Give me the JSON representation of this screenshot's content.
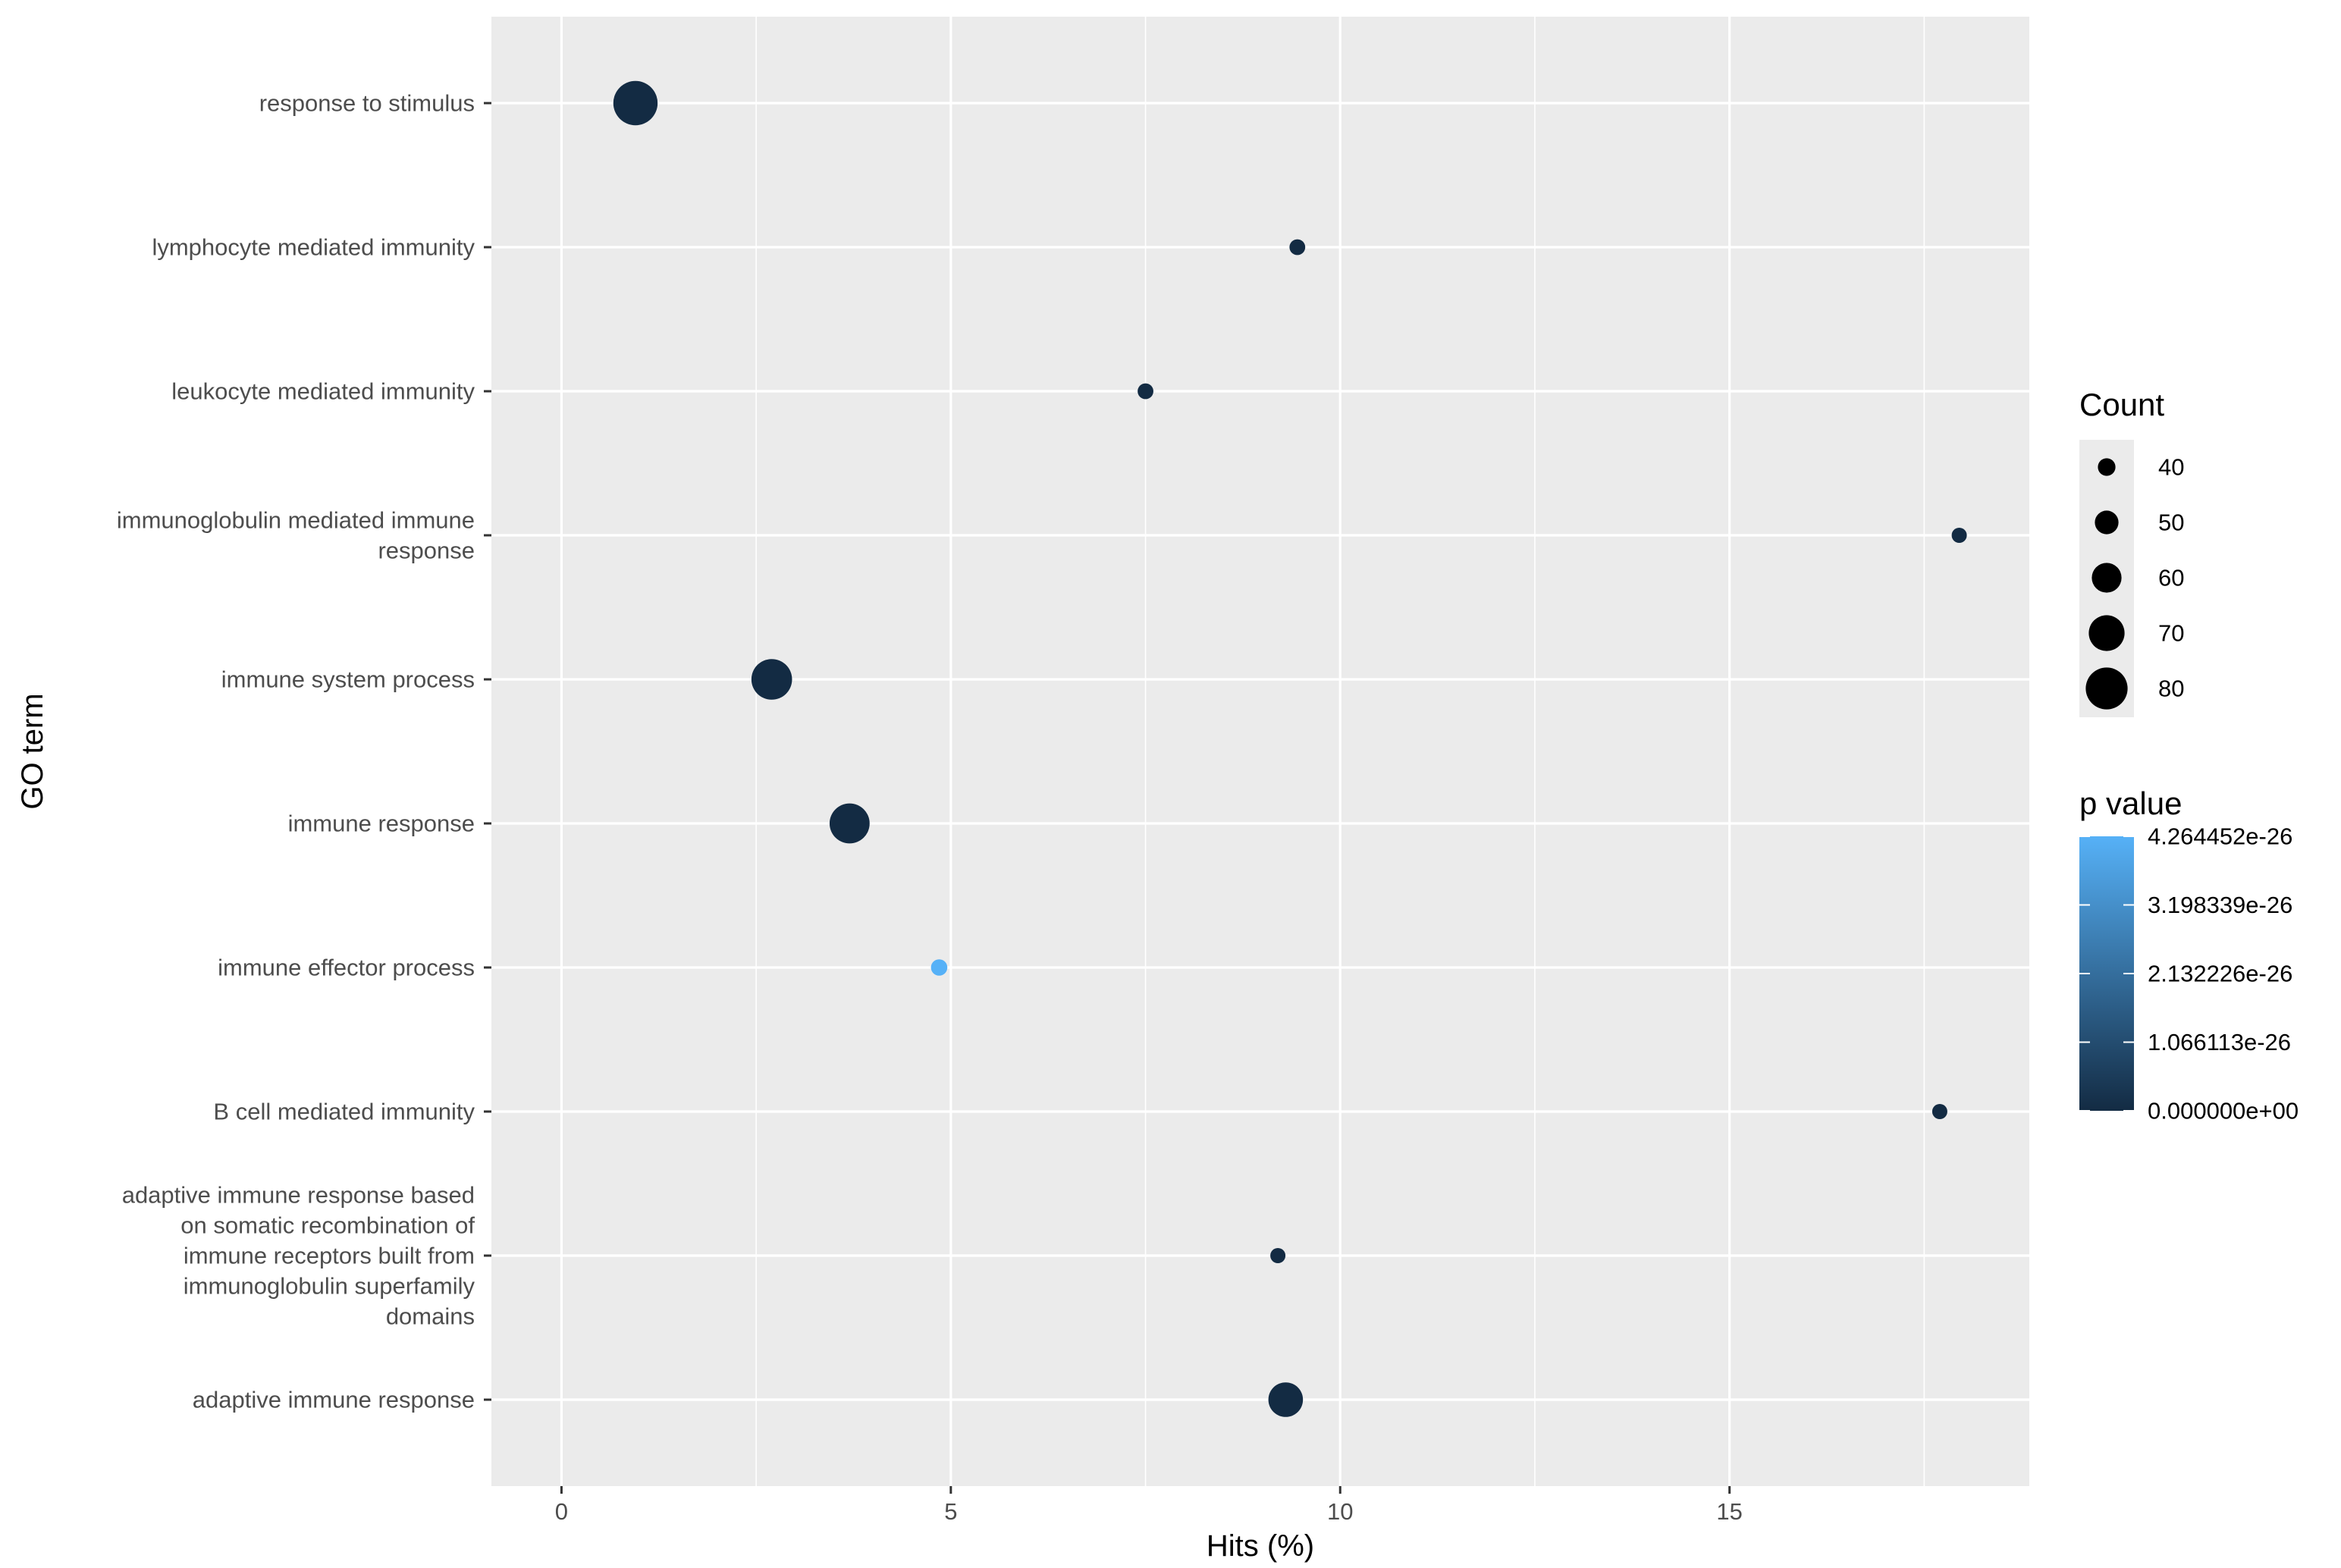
{
  "chart_data": {
    "type": "scatter",
    "title": "",
    "xlabel": "Hits (%)",
    "ylabel": "GO term",
    "xlim": [
      -0.9,
      18.85
    ],
    "xticks": [
      0,
      5,
      10,
      15
    ],
    "xtick_labels": [
      "0",
      "5",
      "10",
      "15"
    ],
    "categories": [
      "response to stimulus",
      "lymphocyte mediated immunity",
      "leukocyte mediated immunity",
      "immunoglobulin mediated immune response",
      "immune system process",
      "immune response",
      "immune effector process",
      "B cell mediated immunity",
      "adaptive immune response based on somatic recombination of immune receptors built from immunoglobulin superfamily domains",
      "adaptive immune response"
    ],
    "category_label_lines": [
      [
        "response to stimulus"
      ],
      [
        "lymphocyte mediated immunity"
      ],
      [
        "leukocyte mediated immunity"
      ],
      [
        "immunoglobulin mediated immune",
        "response"
      ],
      [
        "immune system process"
      ],
      [
        "immune response"
      ],
      [
        "immune effector process"
      ],
      [
        "B cell mediated immunity"
      ],
      [
        "adaptive immune response based",
        "on somatic recombination of",
        "immune receptors built from",
        "immunoglobulin superfamily",
        "domains"
      ],
      [
        "adaptive immune response"
      ]
    ],
    "points": [
      {
        "term": "response to stimulus",
        "x": 0.95,
        "count": 84,
        "p": 0.0
      },
      {
        "term": "lymphocyte mediated immunity",
        "x": 9.45,
        "count": 37,
        "p": 0.0
      },
      {
        "term": "leukocyte mediated immunity",
        "x": 7.5,
        "count": 37,
        "p": 0.0
      },
      {
        "term": "immunoglobulin mediated immune response",
        "x": 17.95,
        "count": 36,
        "p": 0.0
      },
      {
        "term": "immune system process",
        "x": 2.7,
        "count": 78,
        "p": 0.0
      },
      {
        "term": "immune response",
        "x": 3.7,
        "count": 77,
        "p": 0.0
      },
      {
        "term": "immune effector process",
        "x": 4.85,
        "count": 38,
        "p": 4.264452e-26
      },
      {
        "term": "B cell mediated immunity",
        "x": 17.7,
        "count": 36,
        "p": 0.0
      },
      {
        "term": "adaptive immune response based on somatic recombination of immune receptors built from immunoglobulin superfamily domains",
        "x": 9.2,
        "count": 36,
        "p": 0.0
      },
      {
        "term": "adaptive immune response",
        "x": 9.3,
        "count": 68,
        "p": 0.0
      }
    ],
    "size_legend": {
      "title": "Count",
      "breaks": [
        40,
        50,
        60,
        70,
        80
      ],
      "labels": [
        "40",
        "50",
        "60",
        "70",
        "80"
      ]
    },
    "color_legend": {
      "title": "p value",
      "range": [
        0.0,
        4.264452e-26
      ],
      "breaks": [
        0.0,
        1.066113e-26,
        2.132226e-26,
        3.198339e-26,
        4.264452e-26
      ],
      "labels": [
        "0.000000e+00",
        "1.066113e-26",
        "2.132226e-26",
        "3.198339e-26",
        "4.264452e-26"
      ],
      "low_color": "#132B43",
      "high_color": "#56B1F7"
    },
    "grid": true,
    "legend_position": "right",
    "panel_color": "#EBEBEB",
    "grid_color": "#FFFFFF"
  }
}
